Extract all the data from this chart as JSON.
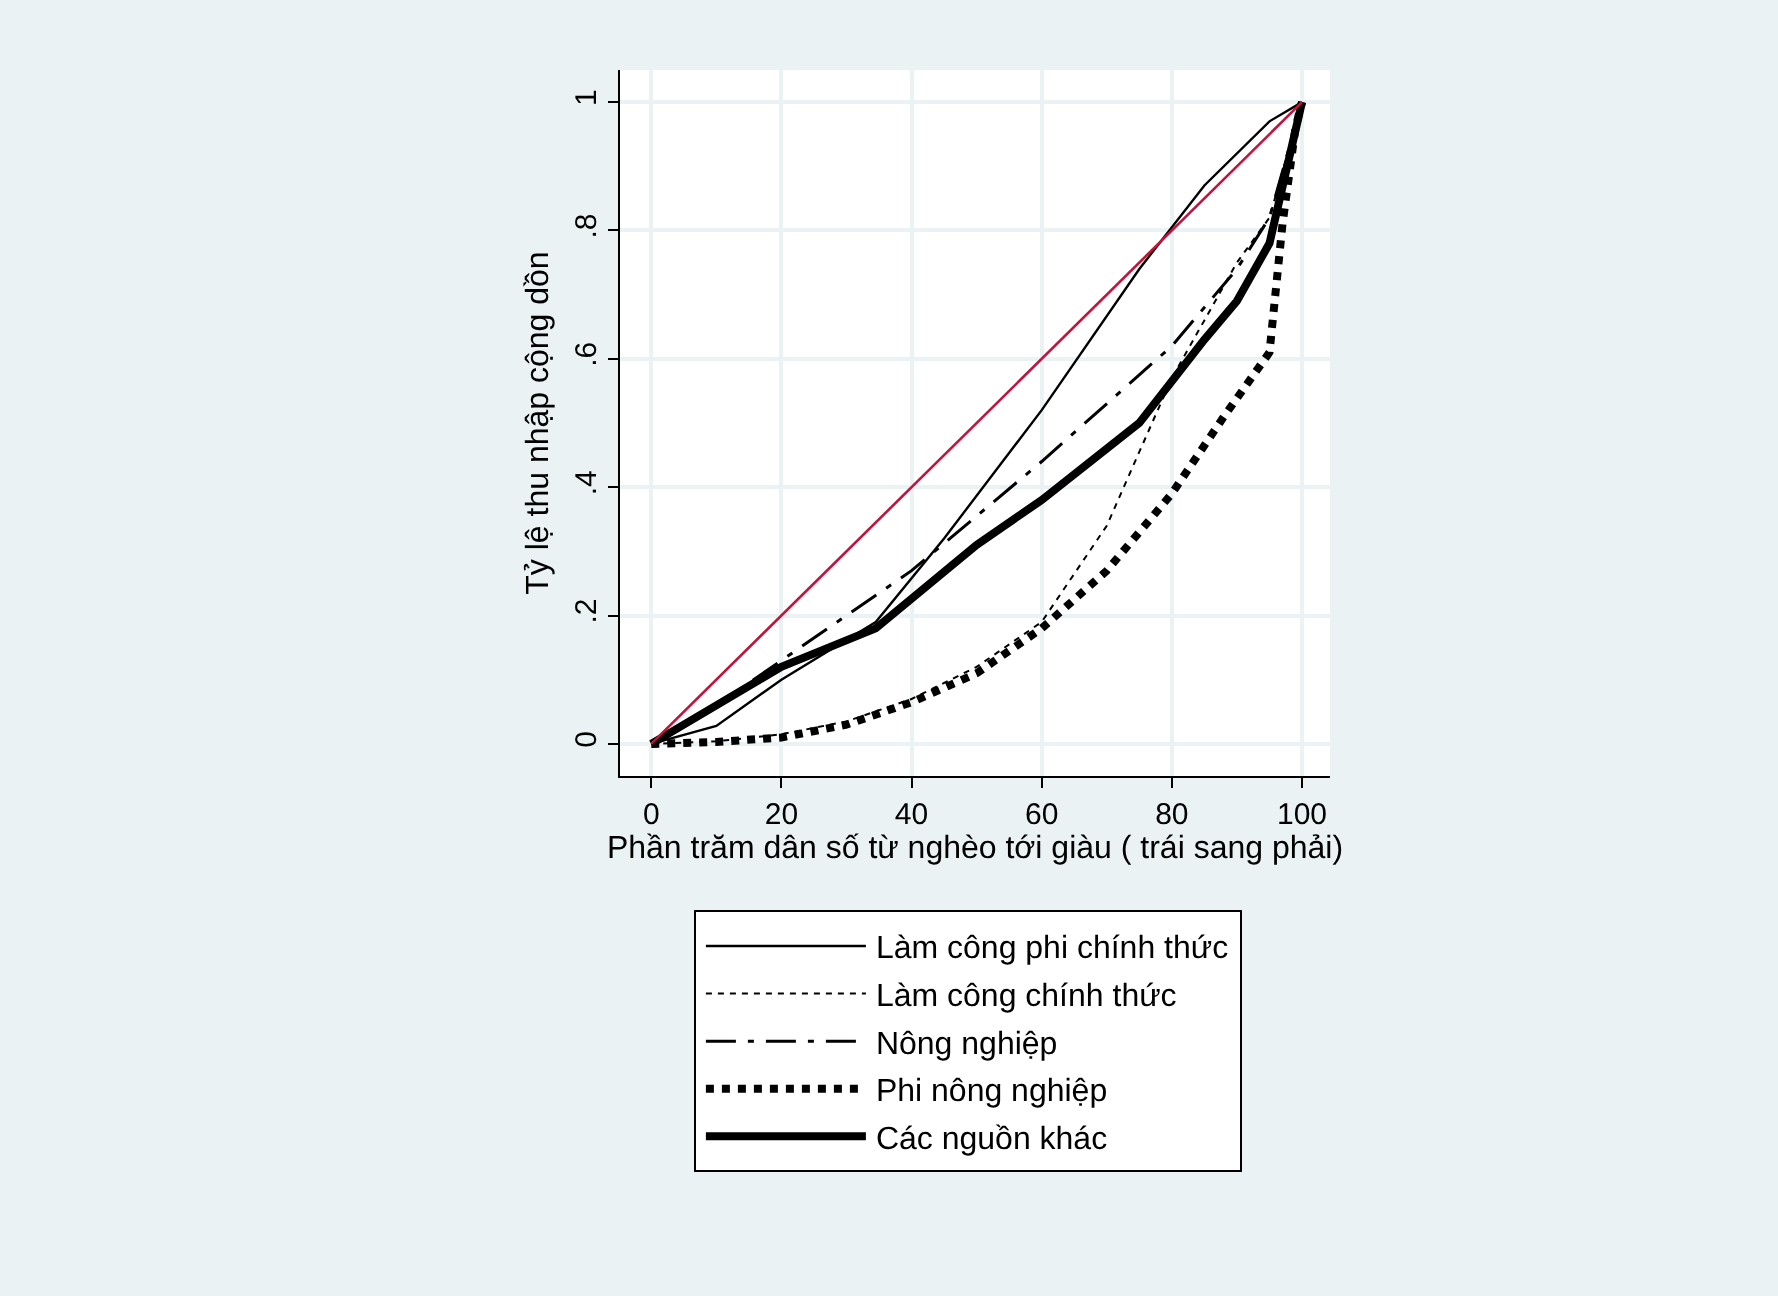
{
  "chart_data": {
    "type": "line",
    "xlabel": "Phần trăm dân số từ nghèo tới giàu ( trái sang phải)",
    "ylabel": "Tỷ lệ thu nhập cộng dồn",
    "series": [
      {
        "name": "Làm công phi chính thức",
        "color": "#000000",
        "line_style": "solid",
        "x": [
          0,
          10,
          20,
          34.5,
          45,
          60,
          75,
          85,
          95,
          100
        ],
        "values": [
          0,
          0.028,
          0.1,
          0.19,
          0.32,
          0.52,
          0.74,
          0.87,
          0.97,
          1
        ]
      },
      {
        "name": "Làm công chính thức",
        "color": "#000000",
        "line_style": "dotted",
        "x": [
          0,
          10,
          20,
          30,
          40,
          50,
          60,
          70,
          80,
          90,
          95,
          100
        ],
        "values": [
          0,
          0.004,
          0.015,
          0.035,
          0.07,
          0.12,
          0.19,
          0.34,
          0.57,
          0.75,
          0.82,
          1
        ]
      },
      {
        "name": "Nông nghiệp",
        "color": "#000000",
        "line_style": "dashdot",
        "x": [
          0,
          10,
          20,
          40,
          60,
          80,
          90,
          95,
          100
        ],
        "values": [
          0,
          0.06,
          0.13,
          0.27,
          0.44,
          0.62,
          0.74,
          0.82,
          1
        ]
      },
      {
        "name": "Phi nông nghiệp",
        "color": "#000000",
        "line_style": "dotted",
        "x": [
          0,
          10,
          20,
          30,
          40,
          50,
          60,
          70,
          80,
          88,
          95,
          97,
          99,
          100
        ],
        "values": [
          0,
          0.003,
          0.01,
          0.03,
          0.065,
          0.11,
          0.18,
          0.27,
          0.39,
          0.51,
          0.61,
          0.81,
          0.96,
          1
        ]
      },
      {
        "name": "Các nguồn khác",
        "color": "#000000",
        "line_style": "solid",
        "x": [
          0,
          10,
          20,
          34.5,
          50,
          60,
          75,
          85,
          90,
          95,
          100
        ],
        "values": [
          0,
          0.06,
          0.12,
          0.18,
          0.31,
          0.38,
          0.5,
          0.63,
          0.69,
          0.78,
          1
        ]
      },
      {
        "color": "#c0143c",
        "line_style": "solid",
        "x": [
          0,
          100
        ],
        "values": [
          0,
          1
        ]
      }
    ],
    "xlim": [
      -4.8,
      104.3
    ],
    "ylim": [
      -0.05,
      1.05
    ],
    "xticks": [
      0,
      20,
      40,
      60,
      80,
      100
    ],
    "yticks": [
      0,
      {
        "value": 0.2,
        "label": ".2"
      },
      {
        "value": 0.4,
        "label": ".4"
      },
      {
        "value": 0.6,
        "label": ".6"
      },
      {
        "value": 0.8,
        "label": ".8"
      },
      1
    ],
    "grid": true,
    "legend": "bottom",
    "marker": "none"
  }
}
